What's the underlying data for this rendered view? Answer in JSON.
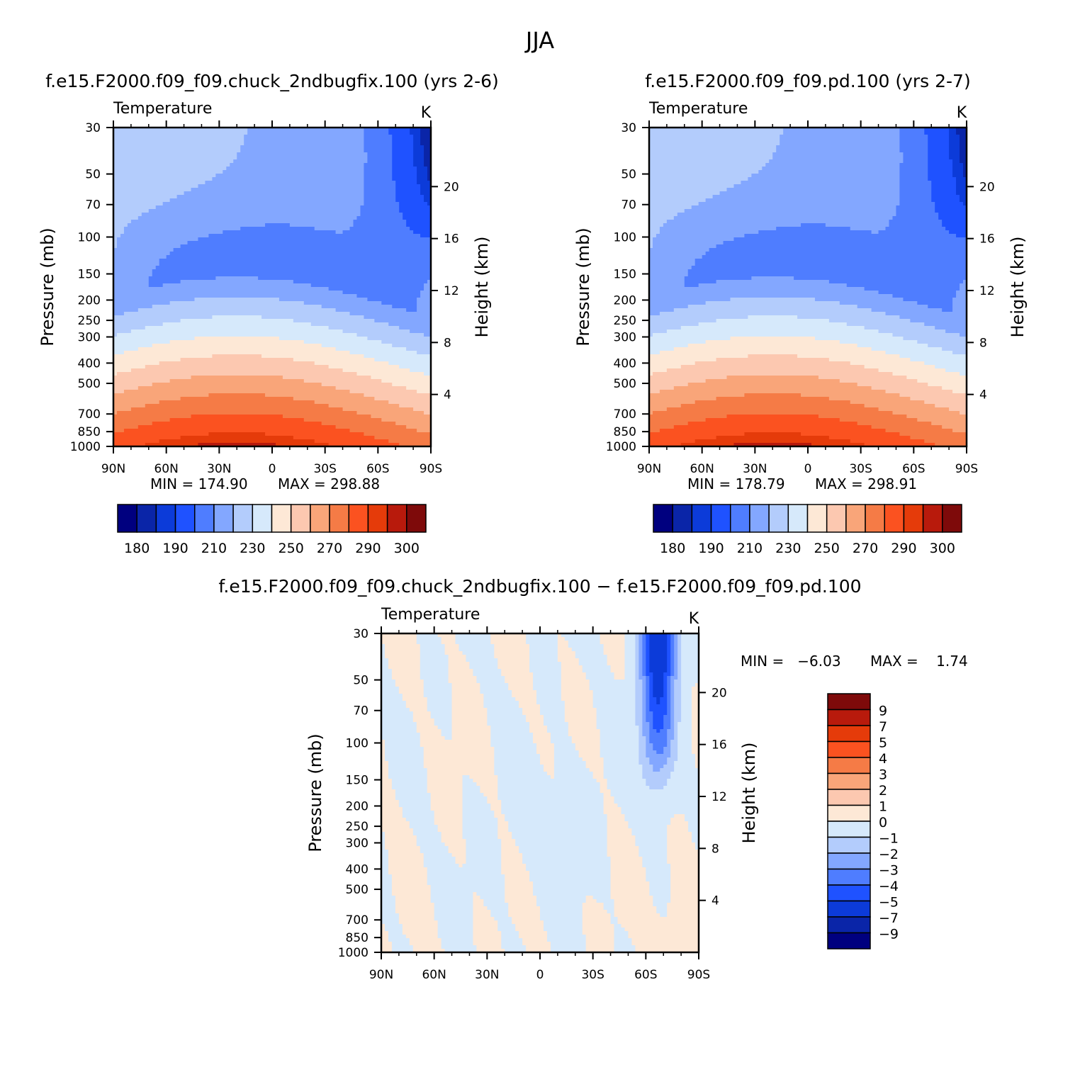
{
  "figure": {
    "title": "JJA"
  },
  "palette": {
    "temperature": [
      "#00007f",
      "#0a25a8",
      "#0c3bd9",
      "#1f52ff",
      "#4f7dff",
      "#83a7ff",
      "#b3ccfc",
      "#d6e9fb",
      "#fde8d6",
      "#fcc8b0",
      "#f9a579",
      "#f57b46",
      "#fb5220",
      "#e53b0a",
      "#b81a0c",
      "#7e0a0a"
    ],
    "difference": [
      "#00007f",
      "#0a25a8",
      "#0c3bd9",
      "#1f52ff",
      "#4f7dff",
      "#83a7ff",
      "#b3ccfc",
      "#d6e9fb",
      "#fde8d6",
      "#fcc8b0",
      "#f9a579",
      "#f57b46",
      "#fb5220",
      "#e53b0a",
      "#b81a0c",
      "#7e0a0a"
    ]
  },
  "chart_data": [
    {
      "type": "heatmap",
      "case": "f.e15.F2000.f09_f09.chuck_2ndbugfix.100 (yrs 2-6)",
      "variable": "Temperature",
      "units": "K",
      "ylabel": "Pressure (mb)",
      "y2label": "Height (km)",
      "x_ticks": [
        "90N",
        "60N",
        "30N",
        "0",
        "30S",
        "60S",
        "90S"
      ],
      "x_tick_values": [
        90,
        60,
        30,
        0,
        -30,
        -60,
        -90
      ],
      "y_ticks": [
        30,
        50,
        70,
        100,
        150,
        200,
        250,
        300,
        400,
        500,
        700,
        850,
        1000
      ],
      "y2_ticks": [
        20,
        16,
        12,
        8,
        4
      ],
      "ylim": [
        1000,
        30
      ],
      "xlim": [
        90,
        -90
      ],
      "min_label": "MIN = 174.90",
      "max_label": "MAX = 298.88",
      "levels": [
        180,
        185,
        190,
        200,
        210,
        220,
        230,
        240,
        250,
        260,
        270,
        280,
        290,
        295,
        300
      ],
      "colorbar_labels": [
        "180",
        "190",
        "210",
        "230",
        "250",
        "270",
        "290",
        "300"
      ],
      "colorbar_label_levels": [
        180,
        190,
        210,
        230,
        250,
        270,
        290,
        300
      ],
      "min": 174.9,
      "max": 298.88
    },
    {
      "type": "heatmap",
      "case": "f.e15.F2000.f09_f09.pd.100 (yrs 2-7)",
      "variable": "Temperature",
      "units": "K",
      "ylabel": "Pressure (mb)",
      "y2label": "Height (km)",
      "x_ticks": [
        "90N",
        "60N",
        "30N",
        "0",
        "30S",
        "60S",
        "90S"
      ],
      "x_tick_values": [
        90,
        60,
        30,
        0,
        -30,
        -60,
        -90
      ],
      "y_ticks": [
        30,
        50,
        70,
        100,
        150,
        200,
        250,
        300,
        400,
        500,
        700,
        850,
        1000
      ],
      "y2_ticks": [
        20,
        16,
        12,
        8,
        4
      ],
      "ylim": [
        1000,
        30
      ],
      "xlim": [
        90,
        -90
      ],
      "min_label": "MIN = 178.79",
      "max_label": "MAX = 298.91",
      "levels": [
        180,
        185,
        190,
        200,
        210,
        220,
        230,
        240,
        250,
        260,
        270,
        280,
        290,
        295,
        300
      ],
      "colorbar_labels": [
        "180",
        "190",
        "210",
        "230",
        "250",
        "270",
        "290",
        "300"
      ],
      "colorbar_label_levels": [
        180,
        190,
        210,
        230,
        250,
        270,
        290,
        300
      ],
      "min": 178.79,
      "max": 298.91
    },
    {
      "type": "heatmap",
      "case": "f.e15.F2000.f09_f09.chuck_2ndbugfix.100 − f.e15.F2000.f09_f09.pd.100",
      "variable": "Temperature",
      "units": "K",
      "ylabel": "Pressure (mb)",
      "y2label": "Height (km)",
      "x_ticks": [
        "90N",
        "60N",
        "30N",
        "0",
        "30S",
        "60S",
        "90S"
      ],
      "x_tick_values": [
        90,
        60,
        30,
        0,
        -30,
        -60,
        -90
      ],
      "y_ticks": [
        30,
        50,
        70,
        100,
        150,
        200,
        250,
        300,
        400,
        500,
        700,
        850,
        1000
      ],
      "y2_ticks": [
        20,
        16,
        12,
        8,
        4
      ],
      "ylim": [
        1000,
        30
      ],
      "xlim": [
        90,
        -90
      ],
      "min_label": "MIN =   −6.03",
      "max_label": "MAX =    1.74",
      "levels": [
        -9,
        -7,
        -5,
        -4,
        -3,
        -2,
        -1,
        0,
        1,
        2,
        3,
        4,
        5,
        7,
        9
      ],
      "colorbar_labels": [
        "9",
        "7",
        "5",
        "4",
        "3",
        "2",
        "1",
        "0",
        "−1",
        "−2",
        "−3",
        "−4",
        "−5",
        "−7",
        "−9"
      ],
      "min": -6.03,
      "max": 1.74
    }
  ]
}
